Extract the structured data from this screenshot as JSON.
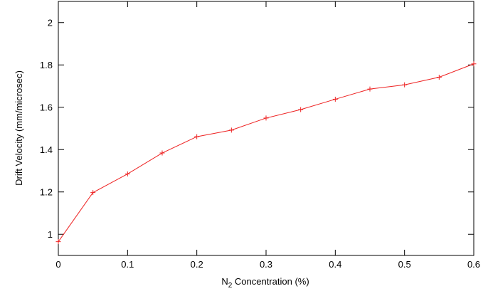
{
  "chart_data": {
    "type": "line",
    "xlabel_main": "N",
    "xlabel_sub": "2",
    "xlabel_rest": " Concentration (%)",
    "ylabel": "Drift Velocity (mm/microsec)",
    "xlim": [
      0,
      0.6
    ],
    "ylim": [
      0.9,
      2.1
    ],
    "x_ticks": [
      "0",
      "0.1",
      "0.2",
      "0.3",
      "0.4",
      "0.5",
      "0.6"
    ],
    "y_ticks": [
      "1",
      "1.2",
      "1.4",
      "1.6",
      "1.8",
      "2"
    ],
    "grid": false,
    "series_color": "#ee2222",
    "x": [
      0,
      0.05,
      0.1,
      0.15,
      0.2,
      0.25,
      0.3,
      0.35,
      0.4,
      0.45,
      0.5,
      0.55,
      0.6
    ],
    "y": [
      0.965,
      1.197,
      1.285,
      1.384,
      1.461,
      1.492,
      1.549,
      1.589,
      1.638,
      1.686,
      1.706,
      1.742,
      1.805
    ]
  }
}
